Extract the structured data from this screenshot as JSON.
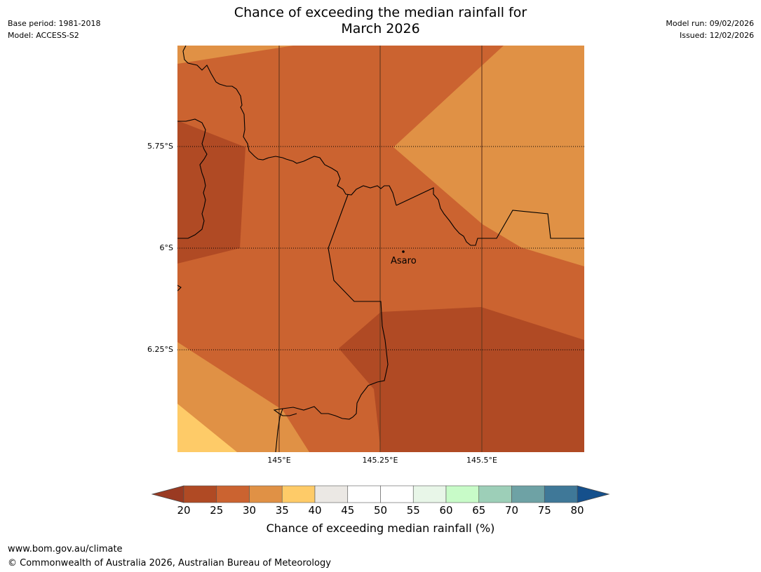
{
  "title": {
    "line1": "Chance of exceeding the median rainfall for",
    "line2": "March 2026"
  },
  "meta": {
    "base_period": "Base period: 1981-2018",
    "model": "Model: ACCESS-S2",
    "model_run": "Model run: 09/02/2026",
    "issued": "Issued: 12/02/2026"
  },
  "map": {
    "lat_ticks": [
      "5.75°S",
      "6°S",
      "6.25°S"
    ],
    "lon_ticks": [
      "145°E",
      "145.25°E",
      "145.5°E"
    ],
    "place": {
      "name": "Asaro"
    }
  },
  "colorbar": {
    "label": "Chance of exceeding median rainfall (%)",
    "ticks": [
      "20",
      "25",
      "30",
      "35",
      "40",
      "45",
      "50",
      "55",
      "60",
      "65",
      "70",
      "75",
      "80"
    ],
    "colors": [
      "#b04a24",
      "#cb6330",
      "#e09145",
      "#fecb68",
      "#ebe8e4",
      "#ffffff",
      "#ffffff",
      "#e8f6e8",
      "#c8fbc8",
      "#9dcfb8",
      "#6ea2a5",
      "#3f7898"
    ],
    "under_color": "#9a3a22",
    "over_color": "#15508c"
  },
  "footer": {
    "url": "www.bom.gov.au/climate",
    "copyright": "© Commonwealth of Australia 2026, Australian Bureau of Meteorology"
  }
}
